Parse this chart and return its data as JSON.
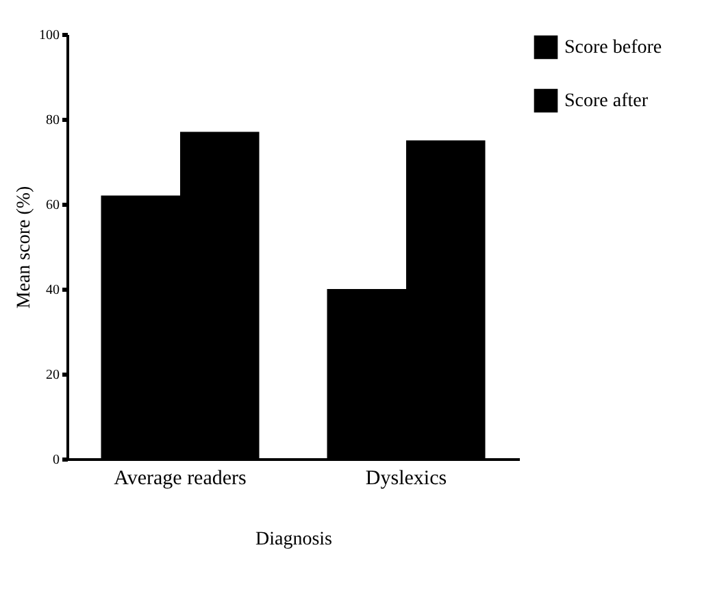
{
  "chart_data": {
    "type": "bar",
    "xlabel": "Diagnosis",
    "ylabel": "Mean score (%)",
    "categories": [
      "Average readers",
      "Dyslexics"
    ],
    "series": [
      {
        "name": "Score before",
        "color": "#000000",
        "values": [
          62,
          40
        ]
      },
      {
        "name": "Score after",
        "color": "#000000",
        "values": [
          77,
          75
        ]
      }
    ],
    "ylim": [
      0,
      100
    ],
    "yticks": [
      0,
      20,
      40,
      60,
      80,
      100
    ],
    "grid": false,
    "legend": "right"
  }
}
